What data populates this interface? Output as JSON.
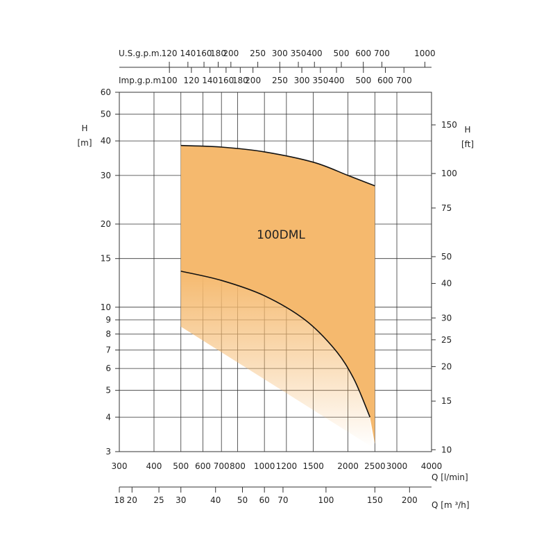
{
  "chart_data": {
    "type": "area",
    "scale": "log-log",
    "grid": true,
    "model_label": "100DML",
    "axes": {
      "left": {
        "label": "H",
        "unit": "[m]",
        "ticks": [
          "3",
          "4",
          "5",
          "6",
          "7",
          "8",
          "9",
          "10",
          "15",
          "20",
          "30",
          "40",
          "50",
          "60"
        ],
        "range": [
          3,
          60
        ]
      },
      "right": {
        "label": "H",
        "unit": "[ft]",
        "ticks": [
          "10",
          "15",
          "20",
          "25",
          "30",
          "40",
          "50",
          "75",
          "100",
          "150"
        ]
      },
      "bottom": {
        "label": "Q [l/min]",
        "ticks": [
          "300",
          "400",
          "500",
          "600",
          "700",
          "800",
          "1000",
          "1200",
          "1500",
          "2000",
          "2500",
          "3000",
          "4000"
        ],
        "range": [
          300,
          4000
        ]
      },
      "flow_m3h": {
        "label": "Q [m ³/h]",
        "ticks": [
          "18",
          "20",
          "25",
          "30",
          "40",
          "50",
          "60",
          "70",
          "100",
          "150",
          "200"
        ]
      },
      "usgpm": {
        "label": "U.S.g.p.m.",
        "ticks": [
          "120",
          "140",
          "160",
          "180",
          "200",
          "250",
          "300",
          "350",
          "400",
          "500",
          "600",
          "700",
          "1000"
        ]
      },
      "impgpm": {
        "label": "Imp.g.p.m.",
        "ticks": [
          "100",
          "120",
          "140",
          "160",
          "180",
          "200",
          "250",
          "300",
          "350",
          "400",
          "500",
          "600",
          "700"
        ]
      }
    },
    "series": [
      {
        "name": "upper",
        "points": [
          [
            500,
            38.5
          ],
          [
            700,
            38
          ],
          [
            1000,
            36.5
          ],
          [
            1500,
            33.5
          ],
          [
            2000,
            30
          ],
          [
            2500,
            27.5
          ]
        ]
      },
      {
        "name": "lower",
        "points": [
          [
            500,
            13.5
          ],
          [
            700,
            12.5
          ],
          [
            1000,
            11
          ],
          [
            1400,
            9
          ],
          [
            1800,
            7
          ],
          [
            2100,
            5.5
          ],
          [
            2400,
            4
          ]
        ]
      }
    ],
    "colors": {
      "fill": "#f5b96e",
      "curve": "#111111",
      "grid": "#333333"
    }
  }
}
